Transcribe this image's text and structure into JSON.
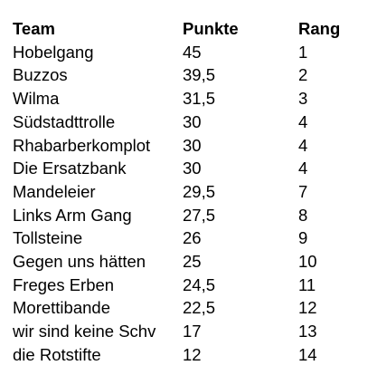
{
  "table": {
    "headers": {
      "team": "Team",
      "points": "Punkte",
      "rank": "Rang"
    },
    "rows": [
      {
        "team": "Hobelgang",
        "points": "45",
        "rank": "1"
      },
      {
        "team": "Buzzos",
        "points": "39,5",
        "rank": "2"
      },
      {
        "team": "Wilma",
        "points": "31,5",
        "rank": "3"
      },
      {
        "team": "Südstadttrolle",
        "points": "30",
        "rank": "4"
      },
      {
        "team": "Rhabarberkomplot",
        "points": "30",
        "rank": "4"
      },
      {
        "team": "Die Ersatzbank",
        "points": "30",
        "rank": "4"
      },
      {
        "team": "Mandeleier",
        "points": "29,5",
        "rank": "7"
      },
      {
        "team": "Links Arm Gang",
        "points": "27,5",
        "rank": "8"
      },
      {
        "team": "Tollsteine",
        "points": "26",
        "rank": "9"
      },
      {
        "team": "Gegen uns hätten",
        "points": "25",
        "rank": "10"
      },
      {
        "team": "Freges Erben",
        "points": "24,5",
        "rank": "11"
      },
      {
        "team": "Morettibande",
        "points": "22,5",
        "rank": "12"
      },
      {
        "team": "wir sind keine Schv",
        "points": "17",
        "rank": "13"
      },
      {
        "team": "die Rotstifte",
        "points": "12",
        "rank": "14"
      }
    ]
  }
}
